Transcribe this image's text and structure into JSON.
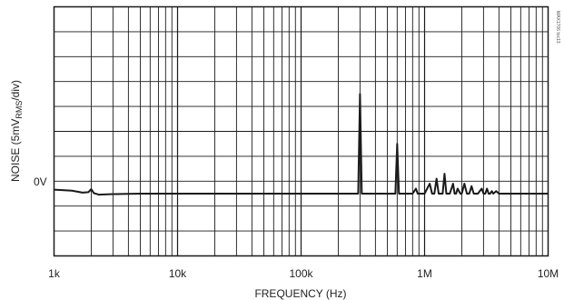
{
  "chart_data": {
    "type": "line",
    "title": "",
    "xlabel": "FREQUENCY (Hz)",
    "ylabel_main": "NOISE (5mV",
    "ylabel_sub": "RMS",
    "ylabel_tail": "/div)",
    "x_scale": "log",
    "xlim": [
      1000,
      10000000
    ],
    "x_tick_labels": [
      "1k",
      "10k",
      "100k",
      "1M",
      "10M"
    ],
    "x_tick_values": [
      1000,
      10000,
      100000,
      1000000,
      10000000
    ],
    "y_units_per_div": "5mV RMS",
    "y_divisions": 10,
    "ylim": [
      -12.5,
      37.5
    ],
    "zero_label": "0V",
    "grid": true,
    "side_note": "MAX1706 toc13",
    "series": [
      {
        "color": "#1a1a1a",
        "x": [
          1000,
          1400,
          1700,
          1900,
          2000,
          2100,
          2300,
          3000,
          5000,
          10000,
          20000,
          40000,
          60000,
          100000,
          200000,
          290000,
          300000,
          310000,
          320000,
          400000,
          580000,
          600000,
          620000,
          640000,
          700000,
          800000,
          850000,
          880000,
          900000,
          950000,
          1000000,
          1100000,
          1150000,
          1200000,
          1250000,
          1300000,
          1400000,
          1450000,
          1500000,
          1550000,
          1600000,
          1700000,
          1750000,
          1800000,
          1850000,
          1950000,
          2000000,
          2100000,
          2200000,
          2300000,
          2400000,
          2500000,
          2600000,
          2700000,
          2900000,
          3000000,
          3100000,
          3200000,
          3300000,
          3400000,
          3500000,
          3600000,
          3800000,
          4000000,
          5000000,
          7000000,
          10000000
        ],
        "y": [
          0.8,
          0.6,
          0.2,
          0.3,
          0.9,
          0.1,
          -0.2,
          -0.1,
          0.0,
          0.0,
          0.0,
          0.0,
          0.0,
          0.0,
          0.0,
          0.0,
          20.0,
          0.0,
          0.0,
          0.0,
          0.0,
          10.0,
          0.0,
          0.0,
          0.0,
          0.0,
          1.0,
          0.0,
          0.0,
          0.0,
          0.0,
          2.0,
          0.0,
          0.0,
          3.0,
          0.0,
          0.0,
          4.0,
          0.0,
          0.0,
          0.0,
          2.0,
          0.0,
          0.0,
          1.0,
          0.0,
          0.0,
          2.0,
          0.0,
          0.0,
          1.5,
          0.0,
          0.0,
          0.0,
          1.0,
          0.0,
          0.0,
          1.0,
          0.0,
          0.0,
          0.5,
          0.0,
          0.5,
          0.0,
          0.0,
          0.0,
          0.0
        ]
      }
    ]
  }
}
